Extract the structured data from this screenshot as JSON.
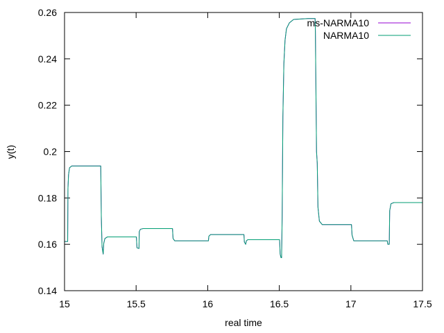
{
  "chart_data": {
    "type": "line",
    "xlabel": "real time",
    "ylabel": "y(t)",
    "xlim": [
      15,
      17.5
    ],
    "ylim": [
      0.14,
      0.26
    ],
    "x_ticks": [
      "15",
      "15.5",
      "16",
      "16.5",
      "17",
      "17.5"
    ],
    "y_ticks": [
      "0.14",
      "0.16",
      "0.18",
      "0.2",
      "0.22",
      "0.24",
      "0.26"
    ],
    "grid": false,
    "legend_position": "top-right",
    "series": [
      {
        "name": "ms-NARMA10",
        "color": "#9400d3",
        "points": [
          [
            15.0,
            0.1612
          ],
          [
            15.022,
            0.1612
          ],
          [
            15.024,
            0.184
          ],
          [
            15.028,
            0.19
          ],
          [
            15.035,
            0.193
          ],
          [
            15.05,
            0.1938
          ],
          [
            15.1,
            0.1938
          ],
          [
            15.2,
            0.1938
          ],
          [
            15.25,
            0.1938
          ],
          [
            15.253,
            0.1938
          ],
          [
            15.257,
            0.172
          ],
          [
            15.262,
            0.159
          ],
          [
            15.27,
            0.1558
          ],
          [
            15.274,
            0.1604
          ],
          [
            15.282,
            0.1625
          ],
          [
            15.3,
            0.1632
          ],
          [
            15.4,
            0.1632
          ],
          [
            15.5,
            0.1632
          ],
          [
            15.502,
            0.1632
          ],
          [
            15.506,
            0.1585
          ],
          [
            15.52,
            0.1582
          ],
          [
            15.522,
            0.1655
          ],
          [
            15.53,
            0.1665
          ],
          [
            15.55,
            0.1668
          ],
          [
            15.7,
            0.1668
          ],
          [
            15.75,
            0.1668
          ],
          [
            15.754,
            0.1668
          ],
          [
            15.758,
            0.1625
          ],
          [
            15.77,
            0.1615
          ],
          [
            15.9,
            0.1615
          ],
          [
            16.0,
            0.1615
          ],
          [
            16.005,
            0.1615
          ],
          [
            16.008,
            0.1635
          ],
          [
            16.02,
            0.1642
          ],
          [
            16.1,
            0.1642
          ],
          [
            16.25,
            0.1642
          ],
          [
            16.253,
            0.1642
          ],
          [
            16.256,
            0.161
          ],
          [
            16.265,
            0.16
          ],
          [
            16.27,
            0.1615
          ],
          [
            16.28,
            0.162
          ],
          [
            16.4,
            0.162
          ],
          [
            16.5,
            0.162
          ],
          [
            16.502,
            0.162
          ],
          [
            16.506,
            0.1558
          ],
          [
            16.512,
            0.1542
          ],
          [
            16.516,
            0.1542
          ],
          [
            16.52,
            0.172
          ],
          [
            16.525,
            0.215
          ],
          [
            16.532,
            0.238
          ],
          [
            16.54,
            0.248
          ],
          [
            16.55,
            0.253
          ],
          [
            16.57,
            0.2555
          ],
          [
            16.6,
            0.257
          ],
          [
            16.65,
            0.2572
          ],
          [
            16.7,
            0.2574
          ],
          [
            16.75,
            0.2574
          ],
          [
            16.752,
            0.252
          ],
          [
            16.755,
            0.232
          ],
          [
            16.76,
            0.2
          ],
          [
            16.765,
            0.195
          ],
          [
            16.77,
            0.176
          ],
          [
            16.78,
            0.17
          ],
          [
            16.8,
            0.1685
          ],
          [
            16.9,
            0.1685
          ],
          [
            17.0,
            0.1685
          ],
          [
            17.004,
            0.1685
          ],
          [
            17.008,
            0.164
          ],
          [
            17.02,
            0.1615
          ],
          [
            17.1,
            0.1615
          ],
          [
            17.25,
            0.1615
          ],
          [
            17.254,
            0.1615
          ],
          [
            17.258,
            0.16
          ],
          [
            17.268,
            0.16
          ],
          [
            17.271,
            0.1745
          ],
          [
            17.28,
            0.1775
          ],
          [
            17.3,
            0.178
          ],
          [
            17.4,
            0.178
          ],
          [
            17.5,
            0.178
          ]
        ]
      },
      {
        "name": "NARMA10",
        "color": "#009e73",
        "points": [
          [
            15.0,
            0.1612
          ],
          [
            15.022,
            0.1612
          ],
          [
            15.024,
            0.184
          ],
          [
            15.028,
            0.19
          ],
          [
            15.035,
            0.193
          ],
          [
            15.05,
            0.1938
          ],
          [
            15.1,
            0.1938
          ],
          [
            15.2,
            0.1938
          ],
          [
            15.25,
            0.1938
          ],
          [
            15.253,
            0.1938
          ],
          [
            15.257,
            0.172
          ],
          [
            15.262,
            0.159
          ],
          [
            15.27,
            0.1558
          ],
          [
            15.274,
            0.1604
          ],
          [
            15.282,
            0.1625
          ],
          [
            15.3,
            0.1632
          ],
          [
            15.4,
            0.1632
          ],
          [
            15.5,
            0.1632
          ],
          [
            15.502,
            0.1632
          ],
          [
            15.506,
            0.1585
          ],
          [
            15.52,
            0.1582
          ],
          [
            15.522,
            0.1655
          ],
          [
            15.53,
            0.1665
          ],
          [
            15.55,
            0.1668
          ],
          [
            15.7,
            0.1668
          ],
          [
            15.75,
            0.1668
          ],
          [
            15.754,
            0.1668
          ],
          [
            15.758,
            0.1625
          ],
          [
            15.77,
            0.1615
          ],
          [
            15.9,
            0.1615
          ],
          [
            16.0,
            0.1615
          ],
          [
            16.005,
            0.1615
          ],
          [
            16.008,
            0.1635
          ],
          [
            16.02,
            0.1642
          ],
          [
            16.1,
            0.1642
          ],
          [
            16.25,
            0.1642
          ],
          [
            16.253,
            0.1642
          ],
          [
            16.256,
            0.161
          ],
          [
            16.265,
            0.16
          ],
          [
            16.27,
            0.1615
          ],
          [
            16.28,
            0.162
          ],
          [
            16.4,
            0.162
          ],
          [
            16.5,
            0.162
          ],
          [
            16.502,
            0.162
          ],
          [
            16.506,
            0.1558
          ],
          [
            16.512,
            0.1542
          ],
          [
            16.516,
            0.1542
          ],
          [
            16.52,
            0.172
          ],
          [
            16.525,
            0.215
          ],
          [
            16.532,
            0.238
          ],
          [
            16.54,
            0.248
          ],
          [
            16.55,
            0.253
          ],
          [
            16.57,
            0.2555
          ],
          [
            16.6,
            0.257
          ],
          [
            16.65,
            0.2572
          ],
          [
            16.7,
            0.2574
          ],
          [
            16.75,
            0.2574
          ],
          [
            16.752,
            0.252
          ],
          [
            16.755,
            0.232
          ],
          [
            16.76,
            0.2
          ],
          [
            16.765,
            0.195
          ],
          [
            16.77,
            0.176
          ],
          [
            16.78,
            0.17
          ],
          [
            16.8,
            0.1685
          ],
          [
            16.9,
            0.1685
          ],
          [
            17.0,
            0.1685
          ],
          [
            17.004,
            0.1685
          ],
          [
            17.008,
            0.164
          ],
          [
            17.02,
            0.1615
          ],
          [
            17.1,
            0.1615
          ],
          [
            17.25,
            0.1615
          ],
          [
            17.254,
            0.1615
          ],
          [
            17.258,
            0.16
          ],
          [
            17.268,
            0.16
          ],
          [
            17.271,
            0.1745
          ],
          [
            17.28,
            0.1775
          ],
          [
            17.3,
            0.178
          ],
          [
            17.4,
            0.178
          ],
          [
            17.5,
            0.178
          ]
        ]
      }
    ]
  }
}
